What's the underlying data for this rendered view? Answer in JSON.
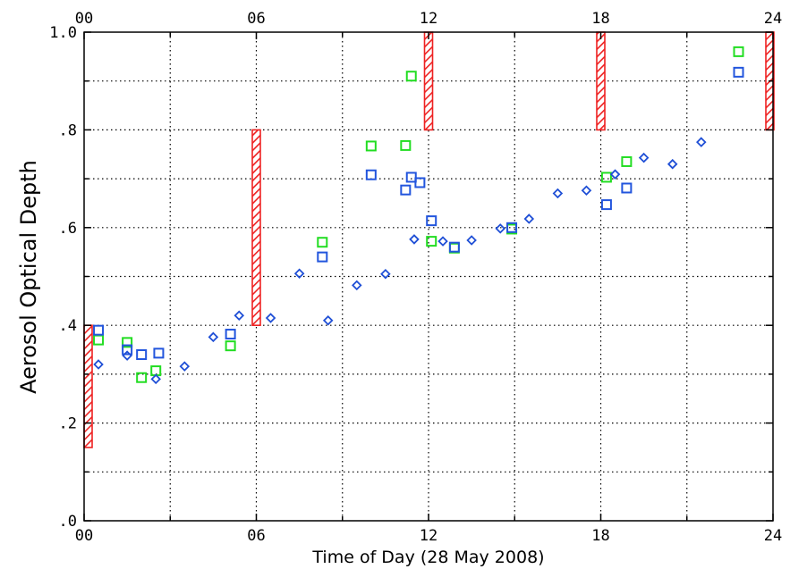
{
  "chart_data": {
    "type": "scatter",
    "xlabel": "Time of Day (28 May 2008)",
    "ylabel": "Aerosol Optical Depth",
    "xlim": [
      0,
      24
    ],
    "ylim": [
      0,
      1.0
    ],
    "x_ticks": [
      0,
      6,
      12,
      18,
      24
    ],
    "x_tick_labels": [
      "00",
      "06",
      "12",
      "18",
      "24"
    ],
    "y_ticks": [
      0,
      0.2,
      0.4,
      0.6,
      0.8,
      1.0
    ],
    "y_tick_labels": [
      ".0",
      ".2",
      ".4",
      ".6",
      ".8",
      "1.0"
    ],
    "grid": "dotted",
    "colors": {
      "green": "#22dd22",
      "blue": "#2255dd",
      "diamond": "#1f4fd6",
      "hatch": "#ee2222",
      "frame": "#000000"
    },
    "series": [
      {
        "marker": "square",
        "color": "#22dd22",
        "points": [
          [
            0.5,
            0.37
          ],
          [
            1.5,
            0.365
          ],
          [
            2.0,
            0.293
          ],
          [
            2.5,
            0.307
          ],
          [
            5.1,
            0.358
          ],
          [
            8.3,
            0.57
          ],
          [
            10.0,
            0.767
          ],
          [
            11.2,
            0.768
          ],
          [
            11.4,
            0.91
          ],
          [
            12.1,
            0.572
          ],
          [
            12.9,
            0.558
          ],
          [
            14.9,
            0.597
          ],
          [
            18.2,
            0.703
          ],
          [
            18.9,
            0.735
          ],
          [
            22.8,
            0.96
          ]
        ]
      },
      {
        "marker": "square",
        "color": "#2255dd",
        "points": [
          [
            0.5,
            0.39
          ],
          [
            1.5,
            0.35
          ],
          [
            2.0,
            0.34
          ],
          [
            2.6,
            0.343
          ],
          [
            5.1,
            0.382
          ],
          [
            8.3,
            0.54
          ],
          [
            10.0,
            0.708
          ],
          [
            11.2,
            0.677
          ],
          [
            11.4,
            0.703
          ],
          [
            11.7,
            0.692
          ],
          [
            12.1,
            0.614
          ],
          [
            12.9,
            0.56
          ],
          [
            14.9,
            0.6
          ],
          [
            18.2,
            0.647
          ],
          [
            18.9,
            0.681
          ],
          [
            22.8,
            0.918
          ]
        ]
      },
      {
        "marker": "diamond",
        "color": "#1f4fd6",
        "points": [
          [
            0.5,
            0.32
          ],
          [
            1.5,
            0.338
          ],
          [
            2.5,
            0.29
          ],
          [
            3.5,
            0.316
          ],
          [
            4.5,
            0.376
          ],
          [
            5.4,
            0.42
          ],
          [
            6.5,
            0.415
          ],
          [
            7.5,
            0.506
          ],
          [
            8.5,
            0.41
          ],
          [
            9.5,
            0.482
          ],
          [
            10.5,
            0.505
          ],
          [
            11.5,
            0.576
          ],
          [
            12.5,
            0.572
          ],
          [
            13.5,
            0.574
          ],
          [
            14.5,
            0.598
          ],
          [
            15.5,
            0.618
          ],
          [
            16.5,
            0.67
          ],
          [
            17.5,
            0.676
          ],
          [
            18.5,
            0.709
          ],
          [
            19.5,
            0.743
          ],
          [
            20.5,
            0.73
          ],
          [
            21.5,
            0.775
          ]
        ]
      }
    ],
    "hatched_bars": [
      {
        "x": 0,
        "y0": 0.15,
        "y1": 0.4
      },
      {
        "x": 6,
        "y0": 0.4,
        "y1": 0.8
      },
      {
        "x": 12,
        "y0": 0.8,
        "y1": 1.0
      },
      {
        "x": 18,
        "y0": 0.8,
        "y1": 1.0
      },
      {
        "x": 24,
        "y0": 0.8,
        "y1": 1.0
      }
    ]
  }
}
